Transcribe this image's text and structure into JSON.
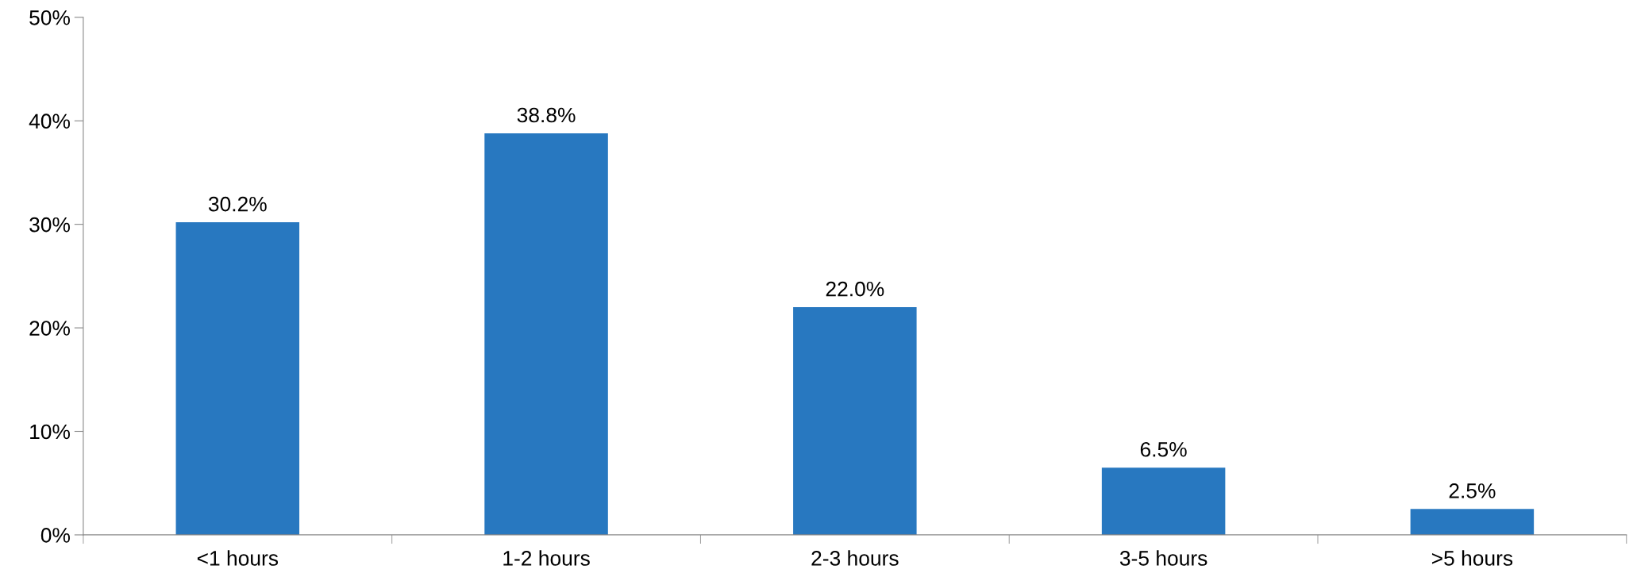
{
  "chart_data": {
    "type": "bar",
    "categories": [
      "<1 hours",
      "1-2 hours",
      "2-3 hours",
      "3-5 hours",
      ">5 hours"
    ],
    "values": [
      30.2,
      38.8,
      22.0,
      6.5,
      2.5
    ],
    "value_labels": [
      "30.2%",
      "38.8%",
      "22.0%",
      "6.5%",
      "2.5%"
    ],
    "color": "#2878c0",
    "ylim": [
      0,
      50
    ],
    "yticks": [
      {
        "value": 0,
        "label": "0%"
      },
      {
        "value": 10,
        "label": "10%"
      },
      {
        "value": 20,
        "label": "20%"
      },
      {
        "value": 30,
        "label": "30%"
      },
      {
        "value": 40,
        "label": "40%"
      },
      {
        "value": 50,
        "label": "50%"
      }
    ],
    "grid": false,
    "legend": false
  }
}
